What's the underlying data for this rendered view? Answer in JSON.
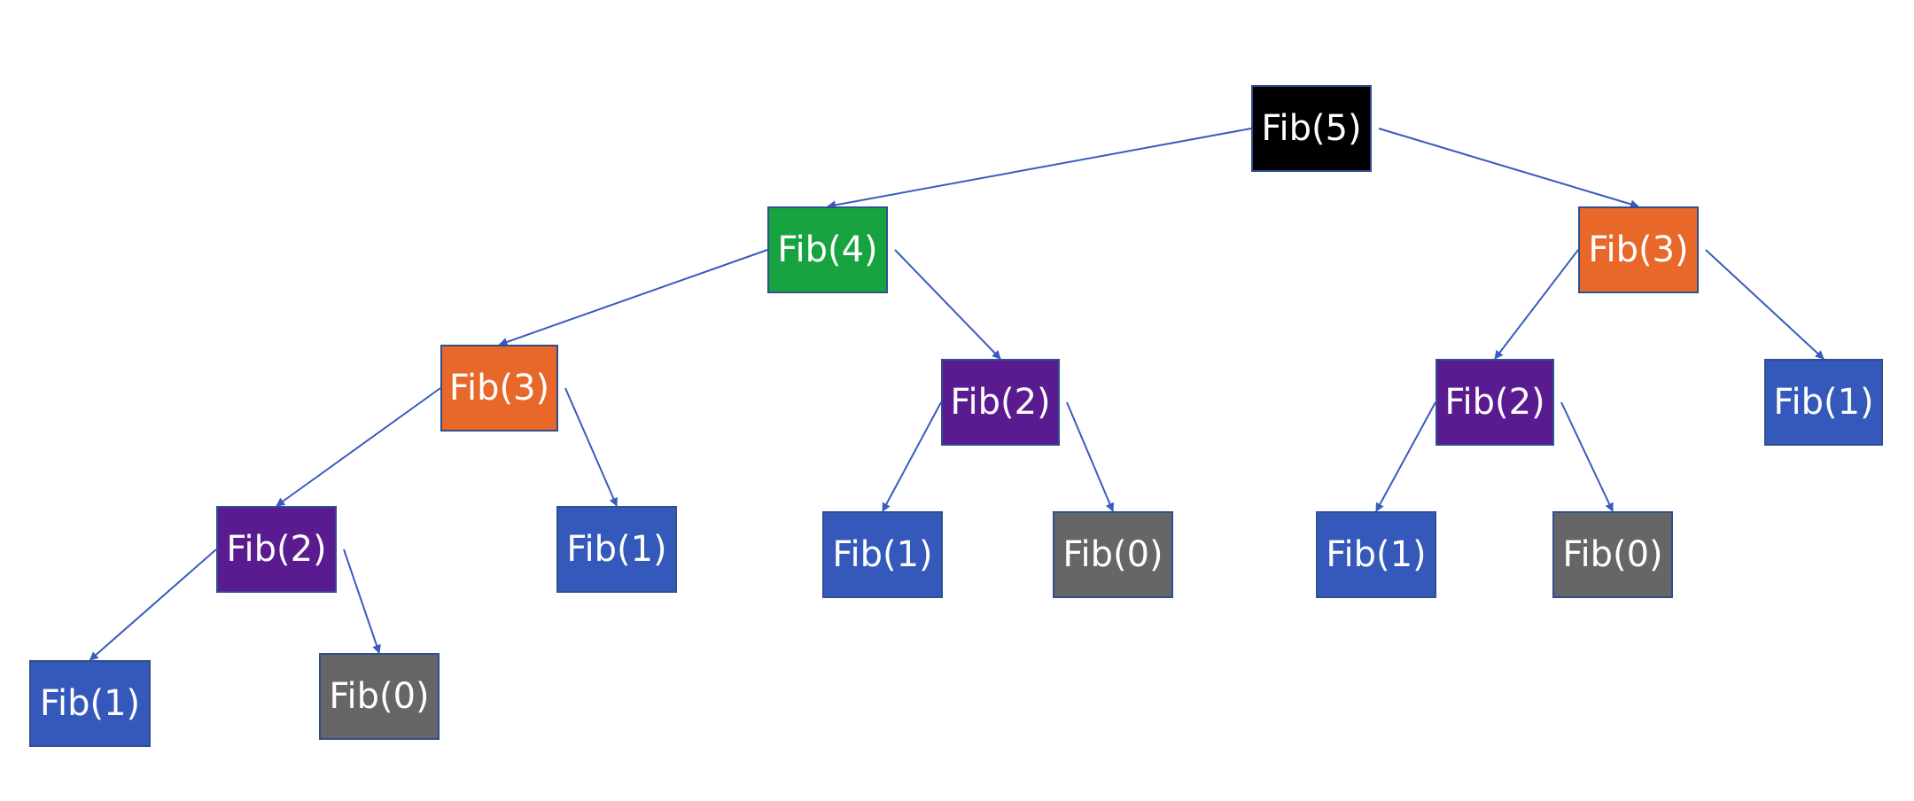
{
  "diagram": {
    "colors": {
      "edge": "#3A5BBE",
      "box_border": "#2F4F8F",
      "text": "#FFFFFF"
    },
    "nodes": [
      {
        "id": "n5",
        "label": "Fib(5)",
        "color": "#000000"
      },
      {
        "id": "n4",
        "label": "Fib(4)",
        "color": "#17A33F"
      },
      {
        "id": "n3r",
        "label": "Fib(3)",
        "color": "#E8682A"
      },
      {
        "id": "n3l",
        "label": "Fib(3)",
        "color": "#E8682A"
      },
      {
        "id": "n2m",
        "label": "Fib(2)",
        "color": "#5B1B90"
      },
      {
        "id": "n2r",
        "label": "Fib(2)",
        "color": "#5B1B90"
      },
      {
        "id": "n1rr",
        "label": "Fib(1)",
        "color": "#3459BB"
      },
      {
        "id": "n2l",
        "label": "Fib(2)",
        "color": "#5B1B90"
      },
      {
        "id": "n1l3",
        "label": "Fib(1)",
        "color": "#3459BB"
      },
      {
        "id": "n1m",
        "label": "Fib(1)",
        "color": "#3459BB"
      },
      {
        "id": "n0m",
        "label": "Fib(0)",
        "color": "#666666"
      },
      {
        "id": "n1r",
        "label": "Fib(1)",
        "color": "#3459BB"
      },
      {
        "id": "n0r",
        "label": "Fib(0)",
        "color": "#666666"
      },
      {
        "id": "n1ll",
        "label": "Fib(1)",
        "color": "#3459BB"
      },
      {
        "id": "n0ll",
        "label": "Fib(0)",
        "color": "#666666"
      }
    ],
    "edges": [
      [
        "n5",
        "n4"
      ],
      [
        "n5",
        "n3r"
      ],
      [
        "n4",
        "n3l"
      ],
      [
        "n4",
        "n2m"
      ],
      [
        "n3r",
        "n2r"
      ],
      [
        "n3r",
        "n1rr"
      ],
      [
        "n3l",
        "n2l"
      ],
      [
        "n3l",
        "n1l3"
      ],
      [
        "n2m",
        "n1m"
      ],
      [
        "n2m",
        "n0m"
      ],
      [
        "n2r",
        "n1r"
      ],
      [
        "n2r",
        "n0r"
      ],
      [
        "n2l",
        "n1ll"
      ],
      [
        "n2l",
        "n0ll"
      ]
    ]
  }
}
